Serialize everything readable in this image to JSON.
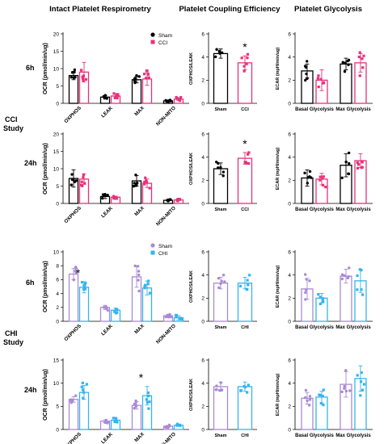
{
  "headers": [
    "Intact Platelet Respirometry",
    "Platelet Coupling Efficiency",
    "Platelet Glycolysis"
  ],
  "study_labels": [
    {
      "line1": "CCI",
      "line2": "Study"
    },
    {
      "line1": "CHI",
      "line2": "Study"
    }
  ],
  "row_labels": [
    "6h",
    "24h",
    "6h",
    "24h"
  ],
  "legends": [
    {
      "items": [
        "Sham",
        "CCI"
      ],
      "colors": [
        "#000000",
        "#e8317a"
      ],
      "shapes": [
        "circle",
        "square"
      ]
    },
    {
      "items": [
        "Sham",
        "CHI"
      ],
      "colors": [
        "#a98ad6",
        "#33b5ee"
      ],
      "shapes": [
        "circle",
        "square"
      ]
    }
  ],
  "star": "*",
  "chart_data": [
    {
      "id": "cci-6h-resp",
      "type": "bar",
      "ylabel": "OCR (pmol/min/ug)",
      "ylim": [
        0,
        20
      ],
      "yticks": [
        0,
        5,
        10,
        15,
        20
      ],
      "categories": [
        "OXPHOS",
        "LEAK",
        "MAX",
        "NON-MITO"
      ],
      "colors": [
        "#000000",
        "#e8317a"
      ],
      "series": [
        {
          "name": "Sham",
          "values": [
            8.0,
            1.8,
            6.8,
            0.7
          ],
          "err": [
            1.2,
            0.4,
            0.9,
            0.2
          ]
        },
        {
          "name": "CCI",
          "values": [
            9.0,
            2.1,
            7.0,
            1.2
          ],
          "err": [
            2.8,
            0.6,
            1.8,
            0.4
          ]
        }
      ],
      "stars": []
    },
    {
      "id": "cci-6h-coup",
      "type": "bar",
      "ylabel": "OXPHOS/LEAK",
      "ylim": [
        0,
        6
      ],
      "yticks": [
        0,
        2,
        4,
        6
      ],
      "categories": [
        "Sham",
        "CCI"
      ],
      "colors": [
        "#000000",
        "#e8317a"
      ],
      "series": [
        {
          "values": [
            4.3,
            3.5
          ],
          "err": [
            0.4,
            0.6
          ]
        }
      ],
      "stars": [
        1
      ]
    },
    {
      "id": "cci-6h-glyc",
      "type": "bar",
      "ylabel": "ECAR (mpH/min/ug)",
      "ylim": [
        0,
        6
      ],
      "yticks": [
        0,
        2,
        4,
        6
      ],
      "categories": [
        "Basal Glycolysis",
        "Max Glycolysis"
      ],
      "colors": [
        "#000000",
        "#e8317a"
      ],
      "series": [
        {
          "name": "Sham",
          "values": [
            2.8,
            3.4
          ],
          "err": [
            0.6,
            0.5
          ]
        },
        {
          "name": "CCI",
          "values": [
            2.0,
            3.5
          ],
          "err": [
            0.9,
            0.8
          ]
        }
      ],
      "stars": []
    },
    {
      "id": "cci-24h-resp",
      "type": "bar",
      "ylabel": "OCR (pmol/min/ug)",
      "ylim": [
        0,
        20
      ],
      "yticks": [
        0,
        5,
        10,
        15,
        20
      ],
      "categories": [
        "OXPHOS",
        "LEAK",
        "MAX",
        "NON-MITO"
      ],
      "colors": [
        "#000000",
        "#e8317a"
      ],
      "series": [
        {
          "name": "Sham",
          "values": [
            7.2,
            2.0,
            6.5,
            0.9
          ],
          "err": [
            2.5,
            0.6,
            1.5,
            0.2
          ]
        },
        {
          "name": "CCI",
          "values": [
            7.0,
            1.8,
            5.8,
            1.0
          ],
          "err": [
            1.5,
            0.3,
            1.2,
            0.2
          ]
        }
      ],
      "stars": []
    },
    {
      "id": "cci-24h-coup",
      "type": "bar",
      "ylabel": "OXPHOS/LEAK",
      "ylim": [
        0,
        6
      ],
      "yticks": [
        0,
        2,
        4,
        6
      ],
      "categories": [
        "Sham",
        "CCI"
      ],
      "colors": [
        "#000000",
        "#e8317a"
      ],
      "series": [
        {
          "values": [
            3.0,
            3.9
          ],
          "err": [
            0.5,
            0.5
          ]
        }
      ],
      "stars": [
        1
      ]
    },
    {
      "id": "cci-24h-glyc",
      "type": "bar",
      "ylabel": "ECAR (mpH/min/ug)",
      "ylim": [
        0,
        6
      ],
      "yticks": [
        0,
        2,
        4,
        6
      ],
      "categories": [
        "Basal Glycolysis",
        "Max Glycolysis"
      ],
      "colors": [
        "#000000",
        "#e8317a"
      ],
      "series": [
        {
          "name": "Sham",
          "values": [
            2.2,
            3.3
          ],
          "err": [
            0.7,
            1.0
          ]
        },
        {
          "name": "CCI",
          "values": [
            2.1,
            3.7
          ],
          "err": [
            0.5,
            0.6
          ]
        }
      ],
      "stars": []
    },
    {
      "id": "chi-6h-resp",
      "type": "bar",
      "ylabel": "OCR (pmol/min/ug)",
      "ylim": [
        0,
        10
      ],
      "yticks": [
        0,
        2,
        4,
        6,
        8,
        10
      ],
      "categories": [
        "OXPHOS",
        "LEAK",
        "MAX",
        "NON-MITO"
      ],
      "colors": [
        "#a98ad6",
        "#33b5ee"
      ],
      "series": [
        {
          "name": "Sham",
          "values": [
            6.8,
            2.0,
            6.4,
            0.8
          ],
          "err": [
            0.8,
            0.3,
            1.5,
            0.2
          ]
        },
        {
          "name": "CHI",
          "values": [
            4.9,
            1.6,
            4.8,
            0.5
          ],
          "err": [
            0.8,
            0.3,
            1.0,
            0.3
          ]
        }
      ],
      "stars": [
        0
      ]
    },
    {
      "id": "chi-6h-coup",
      "type": "bar",
      "ylabel": "OXPHOS/LEAK",
      "ylim": [
        0,
        6
      ],
      "yticks": [
        0,
        2,
        4,
        6
      ],
      "categories": [
        "Sham",
        "CHI"
      ],
      "colors": [
        "#a98ad6",
        "#33b5ee"
      ],
      "series": [
        {
          "values": [
            3.3,
            3.3
          ],
          "err": [
            0.5,
            0.5
          ]
        }
      ],
      "stars": []
    },
    {
      "id": "chi-6h-glyc",
      "type": "bar",
      "ylabel": "ECAR (mpH/min/ug)",
      "ylim": [
        0,
        6
      ],
      "yticks": [
        0,
        2,
        4,
        6
      ],
      "categories": [
        "Basal Glycolysis",
        "Max Glycolysis"
      ],
      "colors": [
        "#a98ad6",
        "#33b5ee"
      ],
      "series": [
        {
          "name": "Sham",
          "values": [
            2.8,
            3.9
          ],
          "err": [
            0.9,
            0.6
          ]
        },
        {
          "name": "CHI",
          "values": [
            2.0,
            3.5
          ],
          "err": [
            0.4,
            1.0
          ]
        }
      ],
      "stars": []
    },
    {
      "id": "chi-24h-resp",
      "type": "bar",
      "ylabel": "OCR (pmol/min/ug)",
      "ylim": [
        0,
        15
      ],
      "yticks": [
        0,
        5,
        10,
        15
      ],
      "categories": [
        "OXPHOS",
        "LEAK",
        "MAX",
        "NON-MITO"
      ],
      "colors": [
        "#a98ad6",
        "#33b5ee"
      ],
      "series": [
        {
          "name": "Sham",
          "values": [
            6.5,
            1.8,
            5.2,
            0.7
          ],
          "err": [
            0.6,
            0.3,
            0.8,
            0.2
          ]
        },
        {
          "name": "CHI",
          "values": [
            8.0,
            2.0,
            7.3,
            0.9
          ],
          "err": [
            1.5,
            0.4,
            2.0,
            0.2
          ]
        }
      ],
      "stars": [
        2
      ]
    },
    {
      "id": "chi-24h-coup",
      "type": "bar",
      "ylabel": "OXPHOS/LEAK",
      "ylim": [
        0,
        6
      ],
      "yticks": [
        0,
        2,
        4,
        6
      ],
      "categories": [
        "Sham",
        "CHI"
      ],
      "colors": [
        "#a98ad6",
        "#33b5ee"
      ],
      "series": [
        {
          "values": [
            3.7,
            3.7
          ],
          "err": [
            0.4,
            0.4
          ]
        }
      ],
      "stars": []
    },
    {
      "id": "chi-24h-glyc",
      "type": "bar",
      "ylabel": "ECAR (mpH/min/ug)",
      "ylim": [
        0,
        6
      ],
      "yticks": [
        0,
        2,
        4,
        6
      ],
      "categories": [
        "Basal Glycolysis",
        "Max Glycolysis"
      ],
      "colors": [
        "#a98ad6",
        "#33b5ee"
      ],
      "series": [
        {
          "name": "Sham",
          "values": [
            2.7,
            3.9
          ],
          "err": [
            0.5,
            1.1
          ]
        },
        {
          "name": "CHI",
          "values": [
            2.8,
            4.4
          ],
          "err": [
            0.5,
            1.1
          ]
        }
      ],
      "stars": []
    }
  ]
}
